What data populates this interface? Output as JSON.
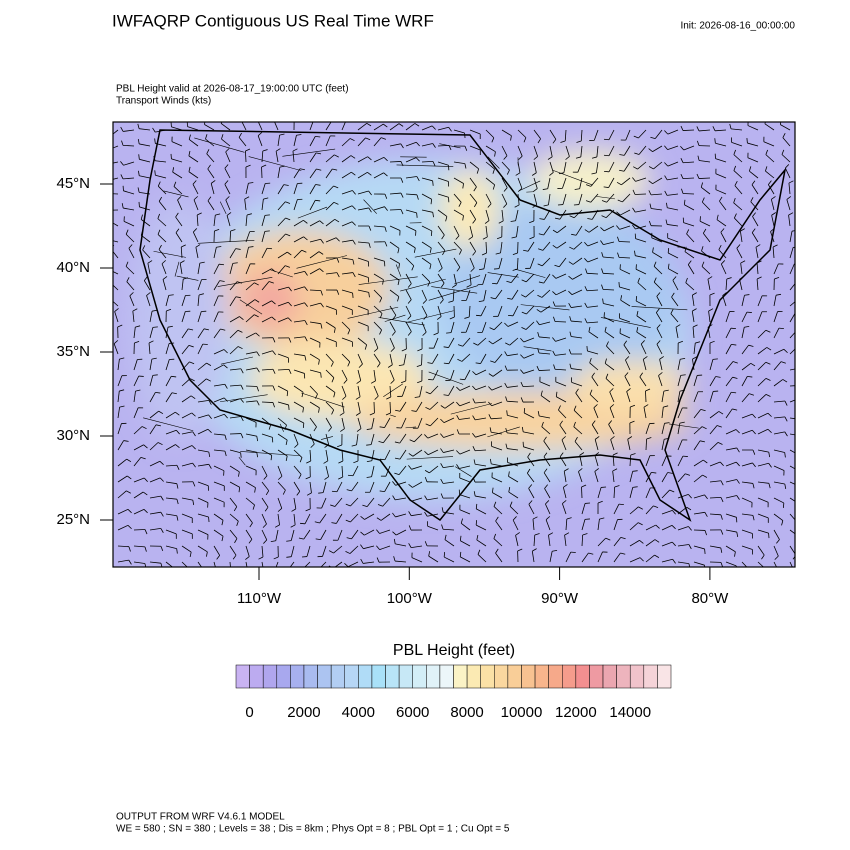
{
  "header": {
    "title": "IWFAQRP Contiguous US Real Time WRF",
    "init": "Init: 2026-08-16_00:00:00",
    "field_line": "PBL Height valid at 2026-08-17_19:00:00 UTC   (feet)",
    "wind_line": "Transport Winds   (kts)"
  },
  "map": {
    "lat_labels": [
      "45°N",
      "40°N",
      "35°N",
      "30°N",
      "25°N"
    ],
    "lon_labels": [
      "110°W",
      "100°W",
      "90°W",
      "80°W"
    ]
  },
  "colorbar": {
    "title": "PBL Height  (feet)",
    "labels": [
      "0",
      "2000",
      "4000",
      "6000",
      "8000",
      "10000",
      "12000",
      "14000"
    ],
    "colors": [
      "#c9b3f2",
      "#bcabf0",
      "#b0a6ee",
      "#a8a8ee",
      "#a7b0ef",
      "#a9bbf0",
      "#acc4f1",
      "#b2cef3",
      "#b6d6f5",
      "#b0dcf7",
      "#a9e1f8",
      "#b8e4f7",
      "#c7e8f6",
      "#d3eef7",
      "#e0f2f8",
      "#ecf6f9",
      "#fbf3c6",
      "#fbeab3",
      "#fbe1a6",
      "#fad79f",
      "#f9ce98",
      "#f8c291",
      "#f8b58c",
      "#f6a98a",
      "#f59c8c",
      "#f38f90",
      "#ee9aa2",
      "#eba6b0",
      "#edb4bd",
      "#f1c3cb",
      "#f5d3d8",
      "#f9e4e6"
    ]
  },
  "footer": {
    "line1": "OUTPUT FROM WRF V4.6.1 MODEL",
    "line2": "WE = 580 ; SN = 380 ; Levels = 38 ; Dis = 8km ; Phys Opt = 8 ; PBL Opt = 1 ; Cu Opt = 5"
  }
}
